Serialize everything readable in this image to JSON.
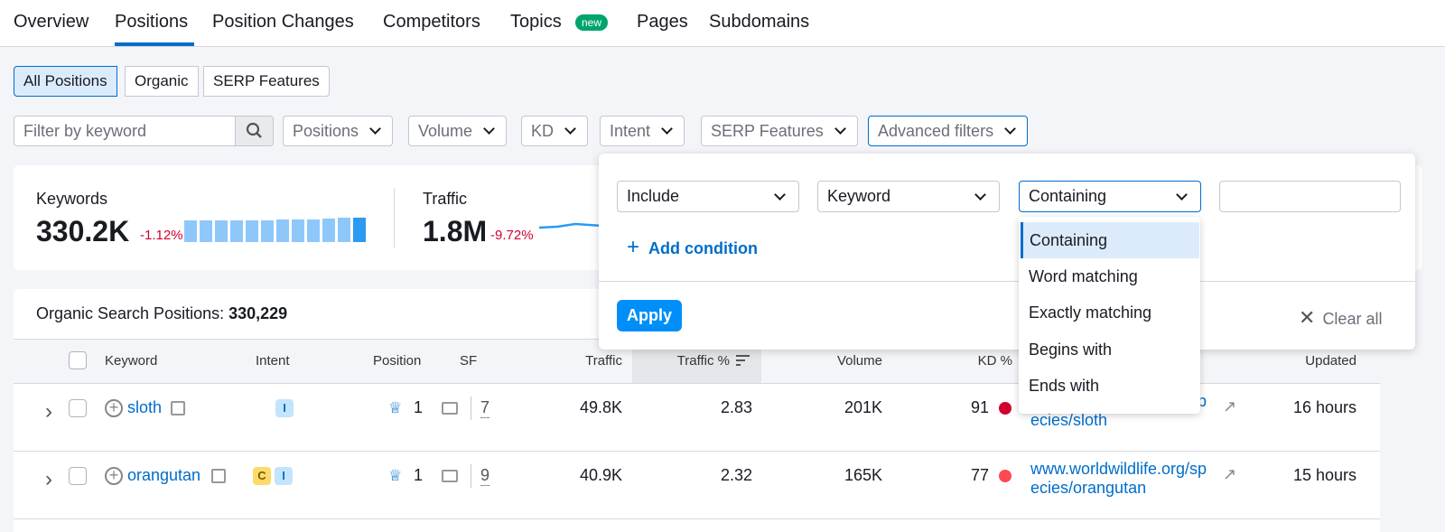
{
  "tabs": [
    "Overview",
    "Positions",
    "Position Changes",
    "Competitors",
    "Topics",
    "Pages",
    "Subdomains"
  ],
  "new_badge": "new",
  "segments": [
    "All Positions",
    "Organic",
    "SERP Features"
  ],
  "filter_placeholder": "Filter by keyword",
  "filters": [
    "Positions",
    "Volume",
    "KD",
    "Intent",
    "SERP Features",
    "Advanced filters"
  ],
  "summary": {
    "keywords": {
      "label": "Keywords",
      "value": "330.2K",
      "change": "-1.12%"
    },
    "traffic": {
      "label": "Traffic",
      "value": "1.8M",
      "change": "-9.72%"
    }
  },
  "advanced": {
    "selects": [
      "Include",
      "Keyword",
      "Containing"
    ],
    "add_condition": "Add condition",
    "apply": "Apply",
    "clear_all": "Clear all",
    "options": [
      "Containing",
      "Word matching",
      "Exactly matching",
      "Begins with",
      "Ends with"
    ]
  },
  "table": {
    "title_label": "Organic Search Positions:",
    "title_count": "330,229",
    "columns": [
      "Keyword",
      "Intent",
      "Position",
      "SF",
      "Traffic",
      "Traffic %",
      "Volume",
      "KD %",
      "Updated"
    ],
    "rows": [
      {
        "keyword": "sloth",
        "intents": [
          "I"
        ],
        "position": "1",
        "sf": "7",
        "traffic": "49.8K",
        "traffic_pct": "2.83",
        "volume": "201K",
        "kd": "91",
        "url": "www.worldwildlife.org/species/sloth",
        "updated": "16 hours"
      },
      {
        "keyword": "orangutan",
        "intents": [
          "C",
          "I"
        ],
        "position": "1",
        "sf": "9",
        "traffic": "40.9K",
        "traffic_pct": "2.32",
        "volume": "165K",
        "kd": "77",
        "url": "www.worldwildlife.org/species/orangutan",
        "updated": "15 hours"
      }
    ]
  }
}
